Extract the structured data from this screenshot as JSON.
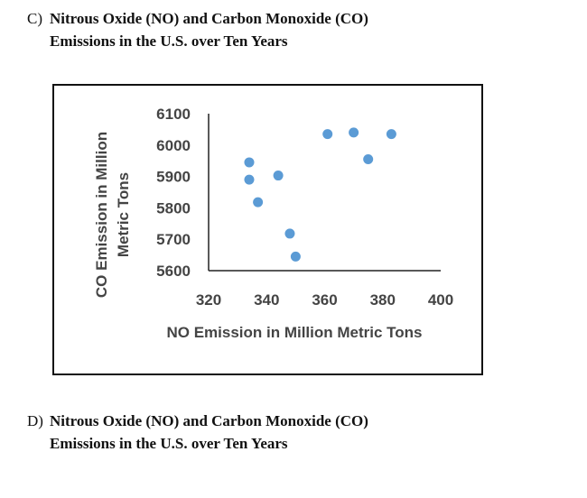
{
  "questions": [
    {
      "letter": "C)",
      "line1": "Nitrous Oxide (NO) and Carbon Monoxide (CO)",
      "line2": "Emissions in the U.S. over Ten Years"
    },
    {
      "letter": "D)",
      "line1": "Nitrous Oxide (NO) and Carbon Monoxide (CO)",
      "line2": "Emissions in the U.S. over Ten Years"
    }
  ],
  "chart_data": {
    "type": "scatter",
    "title": "",
    "xlabel": "NO Emission in Million Metric Tons",
    "ylabel_lines": [
      "CO Emission in Million",
      "Metric Tons"
    ],
    "xlim": [
      320,
      400
    ],
    "ylim": [
      5600,
      6100
    ],
    "xticks": [
      320,
      340,
      360,
      380,
      400
    ],
    "yticks": [
      5600,
      5700,
      5800,
      5900,
      6000,
      6100
    ],
    "grid": false,
    "point_color": "#5b9bd5",
    "points": [
      {
        "x": 334,
        "y": 5945
      },
      {
        "x": 334,
        "y": 5890
      },
      {
        "x": 337,
        "y": 5818
      },
      {
        "x": 344,
        "y": 5903
      },
      {
        "x": 348,
        "y": 5718
      },
      {
        "x": 350,
        "y": 5645
      },
      {
        "x": 361,
        "y": 6035
      },
      {
        "x": 370,
        "y": 6040
      },
      {
        "x": 375,
        "y": 5955
      },
      {
        "x": 383,
        "y": 6035
      }
    ]
  }
}
